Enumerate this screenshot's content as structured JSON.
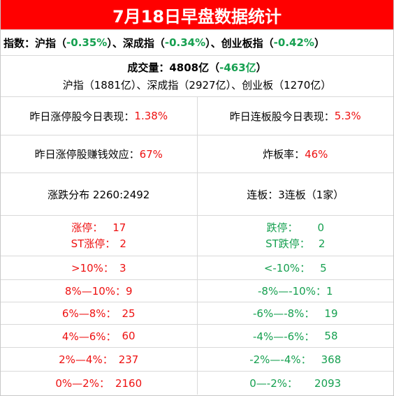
{
  "colors": {
    "title_bg": "#ff0000",
    "up": "#ee1111",
    "down": "#16a050"
  },
  "title": "7月18日早盘数据统计",
  "indices": {
    "label": "指数：",
    "sh_name": "沪指",
    "sh_pct": "-0.35%",
    "sz_name": "深成指",
    "sz_pct": "-0.34%",
    "cy_name": "创业板指",
    "cy_pct": "-0.42%"
  },
  "volume": {
    "label": "成交量：",
    "total": "4808亿",
    "change": "-463亿",
    "breakdown": "沪指（1881亿）、深成指（2927亿）、创业板（1270亿）"
  },
  "stats": {
    "zt_today_label": "昨日涨停股今日表现：",
    "zt_today_value": "1.38%",
    "lb_today_label": "昨日连板股今日表现：",
    "lb_today_value": "5.3%",
    "zt_profit_label": "昨日涨停股赚钱效应：",
    "zt_profit_value": "67%",
    "zb_label": "炸板率：",
    "zb_value": "46%",
    "dist_text": "涨跌分布 2260:2492",
    "lianban_text": "连板：3连板（1家）"
  },
  "limits": {
    "up_label": "涨停：",
    "up_value": "17",
    "st_up_label": "ST涨停：",
    "st_up_value": "2",
    "down_label": "跌停：",
    "down_value": "0",
    "st_down_label": "ST跌停：",
    "st_down_value": "2"
  },
  "ranges": [
    {
      "up_label": ">10%：",
      "up_value": "3",
      "down_label": "<-10%：",
      "down_value": "5"
    },
    {
      "up_label": "8%—10%：",
      "up_value": "9",
      "down_label": "-8%—-10%：",
      "down_value": "1"
    },
    {
      "up_label": "6%—8%：",
      "up_value": "25",
      "down_label": "-6%—-8%：",
      "down_value": "19"
    },
    {
      "up_label": "4%—6%：",
      "up_value": "60",
      "down_label": "-4%—-6%：",
      "down_value": "58"
    },
    {
      "up_label": "2%—4%：",
      "up_value": "237",
      "down_label": "-2%—-4%：",
      "down_value": "368"
    },
    {
      "up_label": "0%—2%：",
      "up_value": "2160",
      "down_label": "0—-2%：",
      "down_value": "2093"
    }
  ]
}
